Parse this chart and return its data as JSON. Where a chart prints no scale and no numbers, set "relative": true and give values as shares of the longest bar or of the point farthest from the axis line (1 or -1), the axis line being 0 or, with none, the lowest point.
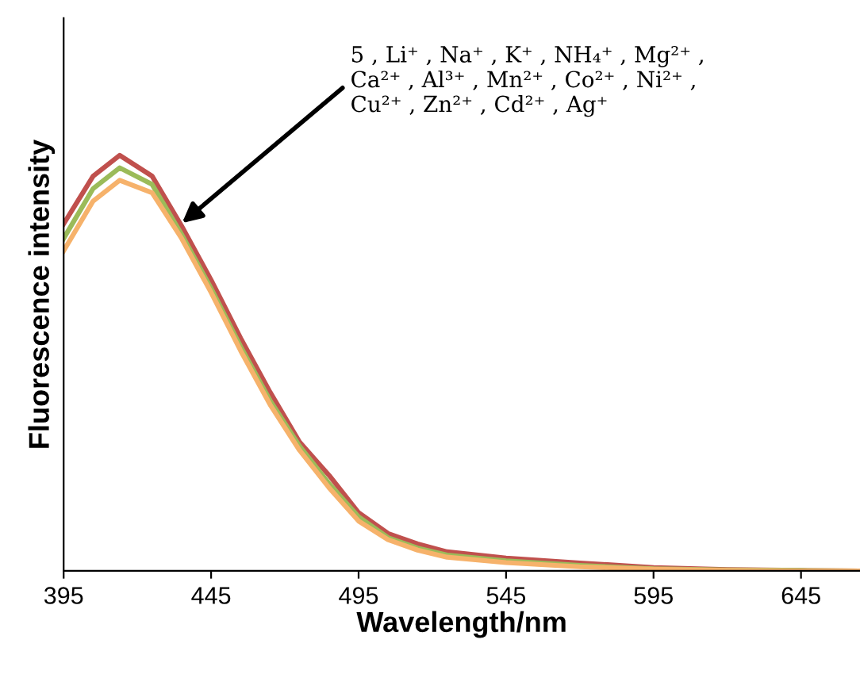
{
  "chart_data": {
    "type": "line",
    "relative": true,
    "xlabel": "Wavelength/nm",
    "ylabel": "Fluorescence intensity",
    "x": [
      395,
      405,
      414,
      425,
      435,
      445,
      455,
      465,
      475,
      485,
      495,
      505,
      515,
      525,
      545,
      570,
      595,
      620,
      645,
      665
    ],
    "xlim": [
      395,
      665
    ],
    "xticks": [
      395,
      445,
      495,
      545,
      595,
      645
    ],
    "marker": "none",
    "line_style": "solid",
    "series": [
      {
        "color": "#c0504d",
        "values": [
          0.835,
          0.95,
          1.0,
          0.95,
          0.83,
          0.7,
          0.56,
          0.43,
          0.31,
          0.23,
          0.14,
          0.09,
          0.065,
          0.046,
          0.031,
          0.019,
          0.008,
          0.003,
          0.001,
          0
        ]
      },
      {
        "color": "#9bbb59",
        "values": [
          0.8,
          0.92,
          0.97,
          0.93,
          0.81,
          0.68,
          0.54,
          0.41,
          0.3,
          0.21,
          0.13,
          0.08,
          0.055,
          0.038,
          0.024,
          0.013,
          0.005,
          0.002,
          0.001,
          0
        ]
      },
      {
        "color": "#f6b26b",
        "values": [
          0.77,
          0.89,
          0.94,
          0.91,
          0.8,
          0.67,
          0.53,
          0.4,
          0.29,
          0.2,
          0.12,
          0.075,
          0.05,
          0.033,
          0.02,
          0.01,
          0.004,
          0.001,
          0,
          0
        ]
      }
    ],
    "annotations": [
      {
        "text": "5 , Li⁺ , Na⁺ , K⁺ , NH₄⁺ , Mg²⁺ ,\nCa²⁺ , Al³⁺ , Mn²⁺ , Co²⁺ , Ni²⁺ ,\nCu²⁺ , Zn²⁺ , Cd²⁺ , Ag⁺",
        "x": 434,
        "y": 0.83
      }
    ]
  }
}
